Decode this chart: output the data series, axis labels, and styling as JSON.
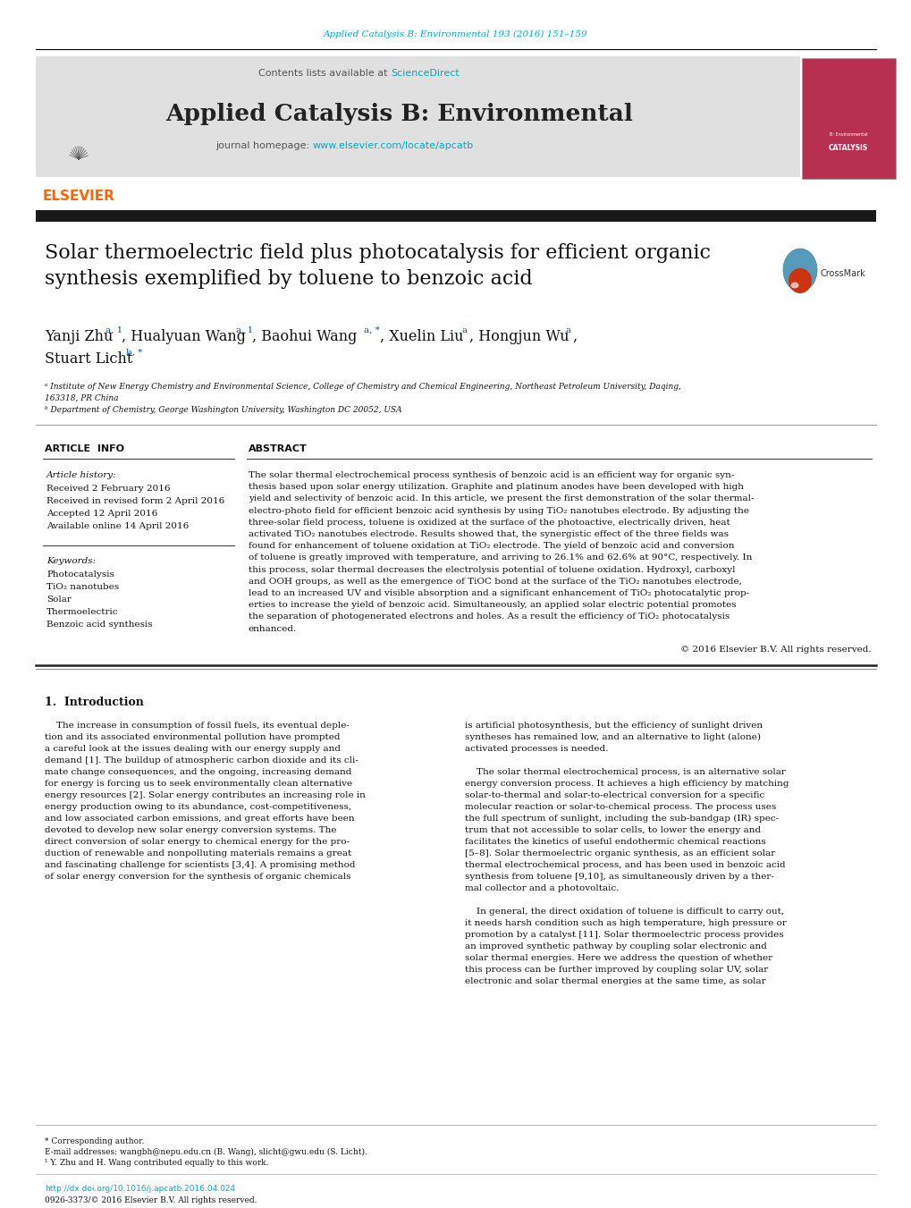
{
  "journal_ref": "Applied Catalysis B: Environmental 193 (2016) 151–159",
  "journal_ref_color": "#00AACC",
  "contents_text": "Contents lists available at ",
  "sciencedirect_text": "ScienceDirect",
  "sciencedirect_color": "#00AACC",
  "journal_name": "Applied Catalysis B: Environmental",
  "journal_homepage_prefix": "journal homepage: ",
  "journal_homepage_url": "www.elsevier.com/locate/apcatb",
  "journal_homepage_url_color": "#00AACC",
  "elsevier_color": "#FF6600",
  "dark_bar_color": "#1A1A1A",
  "title": "Solar thermoelectric field plus photocatalysis for efficient organic\nsynthesis exemplified by toluene to benzoic acid",
  "affil_a": "ᵃ Institute of New Energy Chemistry and Environmental Science, College of Chemistry and Chemical Engineering, Northeast Petroleum University, Daqing,\n163318, PR China",
  "affil_b": "ᵇ Department of Chemistry, George Washington University, Washington DC 20052, USA",
  "article_info_header": "ARTICLE  INFO",
  "abstract_header": "ABSTRACT",
  "article_history_label": "Article history:",
  "received1": "Received 2 February 2016",
  "received2": "Received in revised form 2 April 2016",
  "accepted": "Accepted 12 April 2016",
  "available": "Available online 14 April 2016",
  "keywords_label": "Keywords:",
  "keywords": [
    "Photocatalysis",
    "TiO₂ nanotubes",
    "Solar",
    "Thermoelectric",
    "Benzoic acid synthesis"
  ],
  "abstract_lines": [
    "The solar thermal electrochemical process synthesis of benzoic acid is an efficient way for organic syn-",
    "thesis based upon solar energy utilization. Graphite and platinum anodes have been developed with high",
    "yield and selectivity of benzoic acid. In this article, we present the first demonstration of the solar thermal-",
    "electro-photo field for efficient benzoic acid synthesis by using TiO₂ nanotubes electrode. By adjusting the",
    "three-solar field process, toluene is oxidized at the surface of the photoactive, electrically driven, heat",
    "activated TiO₂ nanotubes electrode. Results showed that, the synergistic effect of the three fields was",
    "found for enhancement of toluene oxidation at TiO₂ electrode. The yield of benzoic acid and conversion",
    "of toluene is greatly improved with temperature, and arriving to 26.1% and 62.6% at 90°C, respectively. In",
    "this process, solar thermal decreases the electrolysis potential of toluene oxidation. Hydroxyl, carboxyl",
    "and OOH groups, as well as the emergence of TiOC bond at the surface of the TiO₂ nanotubes electrode,",
    "lead to an increased UV and visible absorption and a significant enhancement of TiO₂ photocatalytic prop-",
    "erties to increase the yield of benzoic acid. Simultaneously, an applied solar electric potential promotes",
    "the separation of photogenerated electrons and holes. As a result the efficiency of TiO₂ photocatalysis",
    "enhanced."
  ],
  "copyright": "© 2016 Elsevier B.V. All rights reserved.",
  "intro_header": "1.  Introduction",
  "intro_col1_lines": [
    "    The increase in consumption of fossil fuels, its eventual deple-",
    "tion and its associated environmental pollution have prompted",
    "a careful look at the issues dealing with our energy supply and",
    "demand [1]. The buildup of atmospheric carbon dioxide and its cli-",
    "mate change consequences, and the ongoing, increasing demand",
    "for energy is forcing us to seek environmentally clean alternative",
    "energy resources [2]. Solar energy contributes an increasing role in",
    "energy production owing to its abundance, cost-competitiveness,",
    "and low associated carbon emissions, and great efforts have been",
    "devoted to develop new solar energy conversion systems. The",
    "direct conversion of solar energy to chemical energy for the pro-",
    "duction of renewable and nonpolluting materials remains a great",
    "and fascinating challenge for scientists [3,4]. A promising method",
    "of solar energy conversion for the synthesis of organic chemicals"
  ],
  "intro_col2_lines": [
    "is artificial photosynthesis, but the efficiency of sunlight driven",
    "syntheses has remained low, and an alternative to light (alone)",
    "activated processes is needed.",
    "",
    "    The solar thermal electrochemical process, is an alternative solar",
    "energy conversion process. It achieves a high efficiency by matching",
    "solar-to-thermal and solar-to-electrical conversion for a specific",
    "molecular reaction or solar-to-chemical process. The process uses",
    "the full spectrum of sunlight, including the sub-bandgap (IR) spec-",
    "trum that not accessible to solar cells, to lower the energy and",
    "facilitates the kinetics of useful endothermic chemical reactions",
    "[5–8]. Solar thermoelectric organic synthesis, as an efficient solar",
    "thermal electrochemical process, and has been used in benzoic acid",
    "synthesis from toluene [9,10], as simultaneously driven by a ther-",
    "mal collector and a photovoltaic.",
    "",
    "    In general, the direct oxidation of toluene is difficult to carry out,",
    "it needs harsh condition such as high temperature, high pressure or",
    "promotion by a catalyst [11]. Solar thermoelectric process provides",
    "an improved synthetic pathway by coupling solar electronic and",
    "solar thermal energies. Here we address the question of whether",
    "this process can be further improved by coupling solar UV, solar",
    "electronic and solar thermal energies at the same time, as solar"
  ],
  "footnote_corresponding": "* Corresponding author.",
  "footnote_email": "E-mail addresses: wangbh@nepu.edu.cn (B. Wang), slicht@gwu.edu (S. Licht).",
  "footnote_equal": "¹ Y. Zhu and H. Wang contributed equally to this work.",
  "doi_text": "http://dx.doi.org/10.1016/j.apcatb.2016.04.024",
  "doi_color": "#00AACC",
  "issn_text": "0926-3373/© 2016 Elsevier B.V. All rights reserved.",
  "bg_color": "#FFFFFF",
  "gray_bg": "#E0E0E0"
}
